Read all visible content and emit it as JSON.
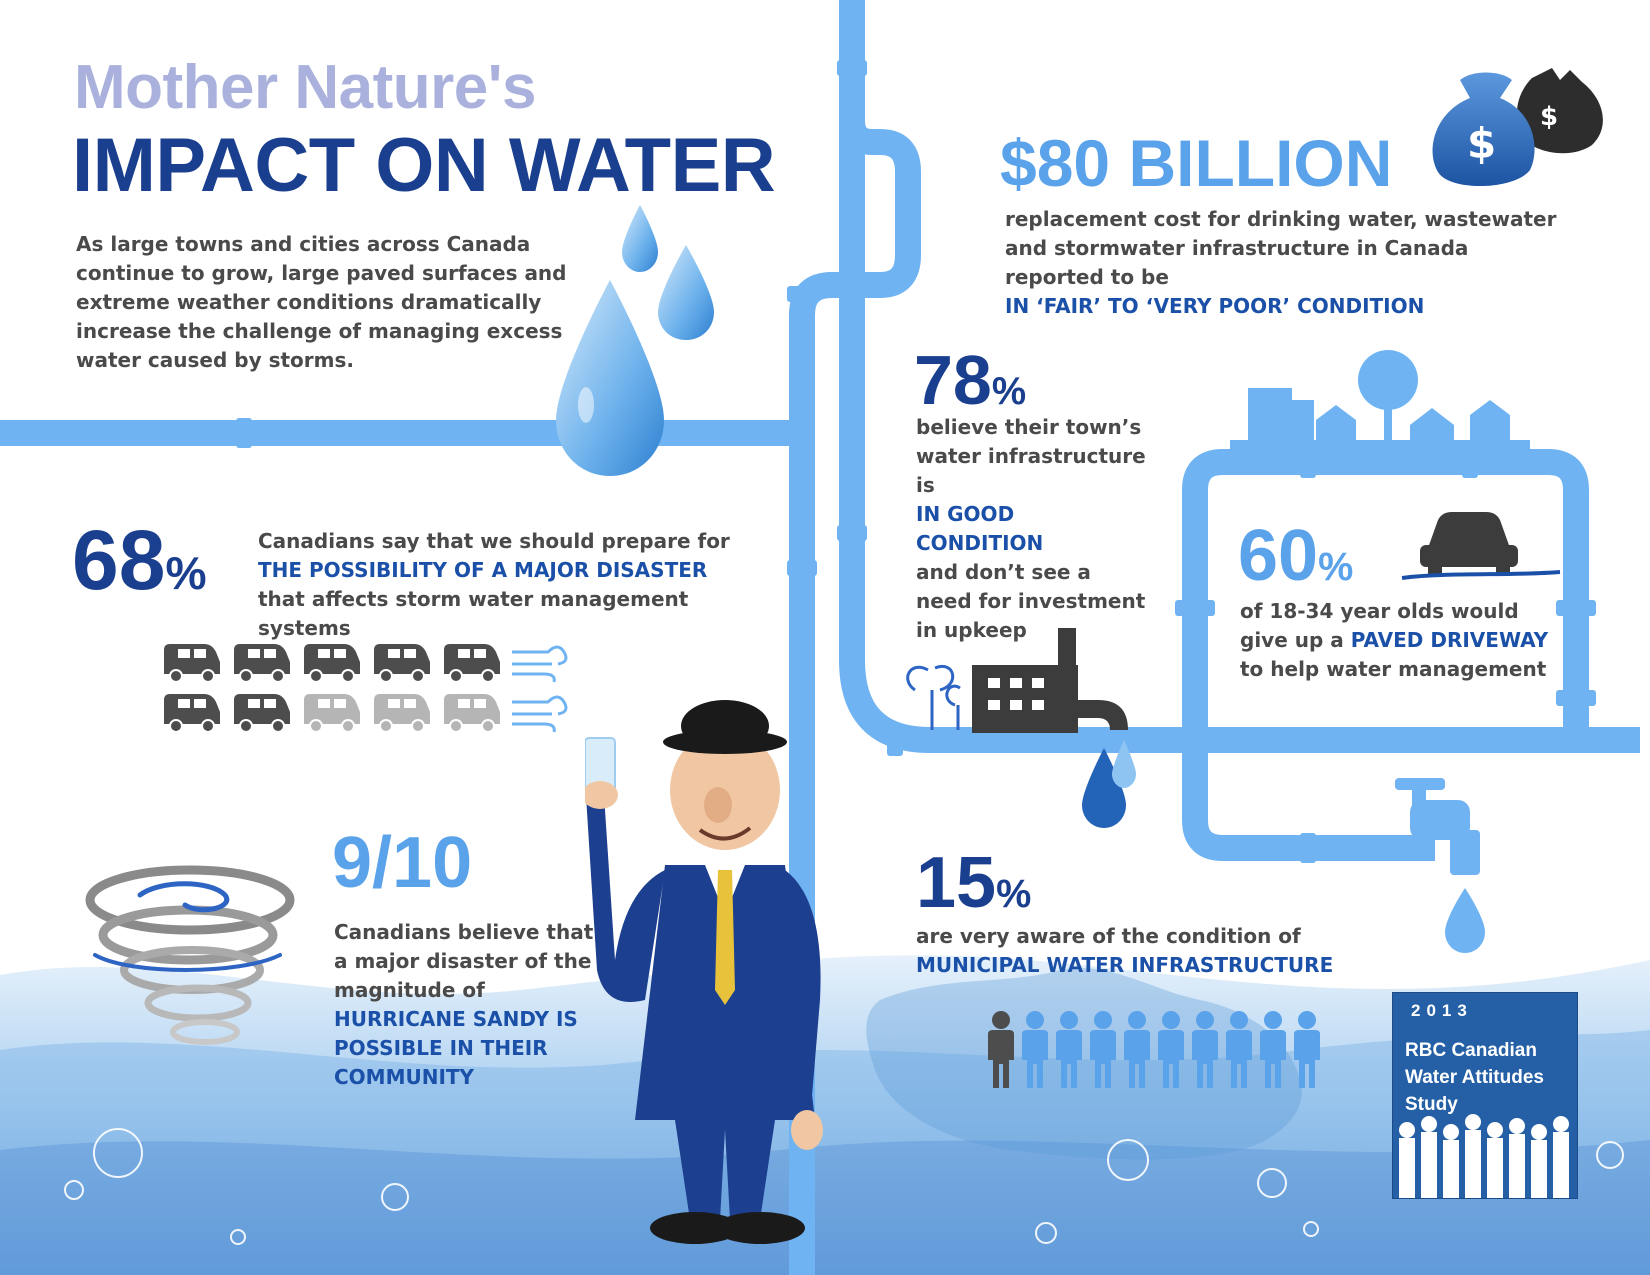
{
  "header": {
    "title_line1": "Mother Nature's",
    "title_line2": "IMPACT ON WATER",
    "intro": "As large towns and cities across Canada continue to grow, large paved surfaces and extreme weather conditions dramatically increase the challenge of managing excess water caused by storms."
  },
  "stats": {
    "s68": {
      "number": "68",
      "unit": "%",
      "line1": "Canadians say that we should prepare for",
      "highlight": "THE POSSIBILITY OF A MAJOR DISASTER",
      "line3": "that affects storm water management systems",
      "icon_total": 10,
      "icon_filled": 7
    },
    "s910": {
      "number": "9/10",
      "text": "Canadians believe that a major disaster of the magnitude of",
      "highlight": "HURRICANE SANDY IS POSSIBLE IN THEIR COMMUNITY"
    },
    "billion": {
      "number": "$80 BILLION",
      "text": "replacement cost for drinking water, wastewater and stormwater infrastructure in Canada reported to be",
      "highlight": "IN ‘FAIR’ TO ‘VERY POOR’ CONDITION"
    },
    "s78": {
      "number": "78",
      "unit": "%",
      "text1": "believe their town’s water infrastructure is",
      "highlight": "IN GOOD CONDITION",
      "text2": "and don’t see a need for investment in upkeep"
    },
    "s60": {
      "number": "60",
      "unit": "%",
      "text1": "of 18-34 year olds would give up a",
      "highlight": "PAVED DRIVEWAY",
      "text2": "to help water management"
    },
    "s15": {
      "number": "15",
      "unit": "%",
      "text": "are very aware of the condition of",
      "highlight": "MUNICIPAL WATER INFRASTRUCTURE",
      "people_total": 10,
      "people_aware": 1
    }
  },
  "study": {
    "year": "2013",
    "name": "RBC Canadian Water Attitudes Study"
  },
  "icons": [
    "water-drop-icon",
    "money-bag-icon",
    "city-skyline-icon",
    "car-icon",
    "factory-icon",
    "faucet-icon",
    "tornado-icon",
    "van-icon",
    "people-icon",
    "wind-icon"
  ],
  "colors": {
    "title_light": "#a9b1dc",
    "title_dark": "#1b3f8f",
    "accent_light": "#5aa2ea",
    "pipe": "#6fb3f2",
    "text": "#4a4a4a",
    "highlight": "#1b50a8",
    "icon_dark": "#4d4d4d",
    "icon_light": "#b5b5b5"
  }
}
